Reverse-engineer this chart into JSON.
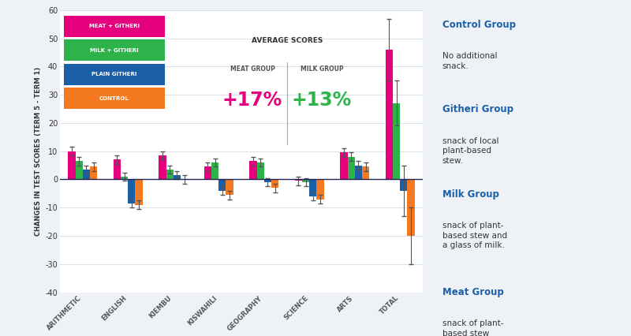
{
  "categories": [
    "ARITHMETIC",
    "ENGLISH",
    "KIEMBU",
    "KISWAHILI",
    "GEOGRAPHY",
    "SCIENCE",
    "ARTS",
    "TOTAL"
  ],
  "groups": [
    "MEAT + GITHERI",
    "MILK + GITHERI",
    "PLAIN GITHERI",
    "CONTROL"
  ],
  "colors": [
    "#e6007e",
    "#2db34a",
    "#1a5fa8",
    "#f47920"
  ],
  "values": {
    "MEAT + GITHERI": [
      10,
      7,
      8.5,
      4.5,
      6.5,
      -0.5,
      9.5,
      46
    ],
    "MILK + GITHERI": [
      6.5,
      1,
      3.5,
      6,
      6,
      -1,
      8,
      27
    ],
    "PLAIN GITHERI": [
      3.5,
      -8.5,
      1.5,
      -4,
      -1,
      -6,
      5,
      -4
    ],
    "CONTROL": [
      4.5,
      -9,
      0,
      -5.5,
      -3,
      -7,
      4.5,
      -20
    ]
  },
  "errors": {
    "MEAT + GITHERI": [
      1.5,
      1.5,
      1.5,
      1.5,
      1.5,
      1.5,
      1.5,
      11
    ],
    "MILK + GITHERI": [
      1.5,
      1.5,
      1.5,
      1.5,
      1.5,
      1.5,
      1.5,
      8
    ],
    "PLAIN GITHERI": [
      1.5,
      1.5,
      1.5,
      1.5,
      1.5,
      1.5,
      1.5,
      9
    ],
    "CONTROL": [
      1.5,
      1.5,
      1.5,
      1.5,
      1.5,
      1.5,
      1.5,
      10
    ]
  },
  "ylabel": "CHANGES IN TEST SCORES (TERM 5 - TERM 1)",
  "ylim": [
    -40,
    60
  ],
  "yticks": [
    -40,
    -30,
    -20,
    -10,
    0,
    10,
    20,
    30,
    40,
    50,
    60
  ],
  "bg_color": "#eef2f7",
  "plot_bg_color": "#ffffff",
  "avg_scores_box": {
    "meat_pct": "+17%",
    "milk_pct": "+13%",
    "meat_color": "#e6007e",
    "milk_color": "#2db34a",
    "title": "AVERAGE SCORES",
    "meat_label": "MEAT GROUP",
    "milk_label": "MILK GROUP",
    "box_color": "#dde3ec"
  },
  "right_panel_color": "#1a5fa8",
  "legend_labels": [
    "MEAT + GITHERI",
    "MILK + GITHERI",
    "PLAIN GITHERI",
    "CONTROL"
  ]
}
